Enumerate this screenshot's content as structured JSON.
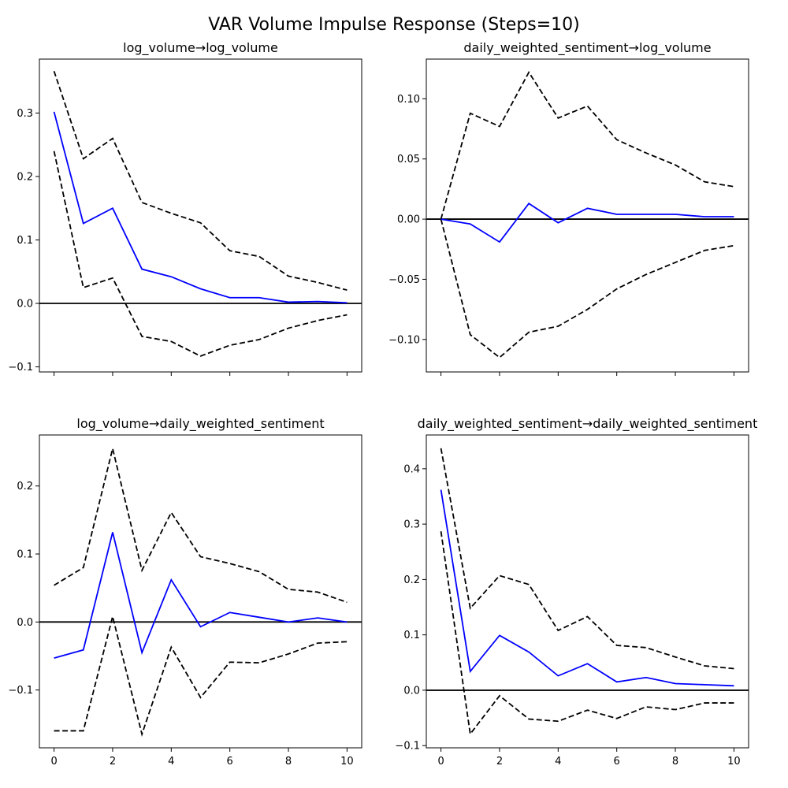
{
  "chart_data": {
    "type": "line",
    "title": "VAR Volume Impulse Response (Steps=10)",
    "x": [
      0,
      1,
      2,
      3,
      4,
      5,
      6,
      7,
      8,
      9,
      10
    ],
    "xticks": [
      0,
      2,
      4,
      6,
      8,
      10
    ],
    "xlim": [
      -0.5,
      10.5
    ],
    "line_colors": {
      "irf": "#0000ff",
      "bands": "#000000",
      "zero": "#000000"
    },
    "panels": [
      {
        "title": "log_volume→log_volume",
        "ylim": [
          -0.108,
          0.385
        ],
        "yticks": [
          -0.1,
          0.0,
          0.1,
          0.2,
          0.3
        ],
        "ytick_labels": [
          "−0.1",
          "0.0",
          "0.1",
          "0.2",
          "0.3"
        ],
        "irf": [
          0.302,
          0.126,
          0.15,
          0.054,
          0.042,
          0.023,
          0.009,
          0.009,
          0.002,
          0.003,
          0.001
        ],
        "upper": [
          0.366,
          0.228,
          0.26,
          0.159,
          0.142,
          0.127,
          0.083,
          0.074,
          0.043,
          0.033,
          0.021
        ],
        "lower": [
          0.24,
          0.025,
          0.04,
          -0.052,
          -0.06,
          -0.083,
          -0.066,
          -0.057,
          -0.039,
          -0.027,
          -0.018
        ]
      },
      {
        "title": "daily_weighted_sentiment→log_volume",
        "ylim": [
          -0.127,
          0.133
        ],
        "yticks": [
          -0.1,
          -0.05,
          0.0,
          0.05,
          0.1
        ],
        "ytick_labels": [
          "−0.10",
          "−0.05",
          "0.00",
          "0.05",
          "0.10"
        ],
        "irf": [
          0.0,
          -0.004,
          -0.019,
          0.013,
          -0.003,
          0.009,
          0.004,
          0.004,
          0.004,
          0.002,
          0.002
        ],
        "upper": [
          0.0,
          0.088,
          0.077,
          0.122,
          0.084,
          0.094,
          0.066,
          0.055,
          0.045,
          0.031,
          0.027
        ],
        "lower": [
          0.0,
          -0.096,
          -0.115,
          -0.094,
          -0.089,
          -0.075,
          -0.058,
          -0.046,
          -0.036,
          -0.026,
          -0.022
        ]
      },
      {
        "title": "log_volume→daily_weighted_sentiment",
        "ylim": [
          -0.185,
          0.275
        ],
        "yticks": [
          -0.1,
          0.0,
          0.1,
          0.2
        ],
        "ytick_labels": [
          "−0.1",
          "0.0",
          "0.1",
          "0.2"
        ],
        "irf": [
          -0.053,
          -0.041,
          0.132,
          -0.045,
          0.062,
          -0.007,
          0.014,
          0.007,
          0.0,
          0.006,
          0.0
        ],
        "upper": [
          0.054,
          0.08,
          0.255,
          0.076,
          0.161,
          0.096,
          0.086,
          0.074,
          0.048,
          0.044,
          0.029
        ],
        "lower": [
          -0.16,
          -0.16,
          0.008,
          -0.165,
          -0.037,
          -0.111,
          -0.059,
          -0.06,
          -0.047,
          -0.031,
          -0.029
        ]
      },
      {
        "title": "daily_weighted_sentiment→daily_weighted_sentiment",
        "ylim": [
          -0.104,
          0.461
        ],
        "yticks": [
          -0.1,
          0.0,
          0.1,
          0.2,
          0.3,
          0.4
        ],
        "ytick_labels": [
          "−0.1",
          "0.0",
          "0.1",
          "0.2",
          "0.3",
          "0.4"
        ],
        "irf": [
          0.362,
          0.034,
          0.099,
          0.069,
          0.026,
          0.048,
          0.015,
          0.023,
          0.012,
          0.01,
          0.008
        ],
        "upper": [
          0.437,
          0.148,
          0.207,
          0.191,
          0.108,
          0.133,
          0.081,
          0.077,
          0.06,
          0.044,
          0.039
        ],
        "lower": [
          0.287,
          -0.079,
          -0.01,
          -0.052,
          -0.056,
          -0.036,
          -0.051,
          -0.03,
          -0.035,
          -0.023,
          -0.023
        ]
      }
    ]
  }
}
